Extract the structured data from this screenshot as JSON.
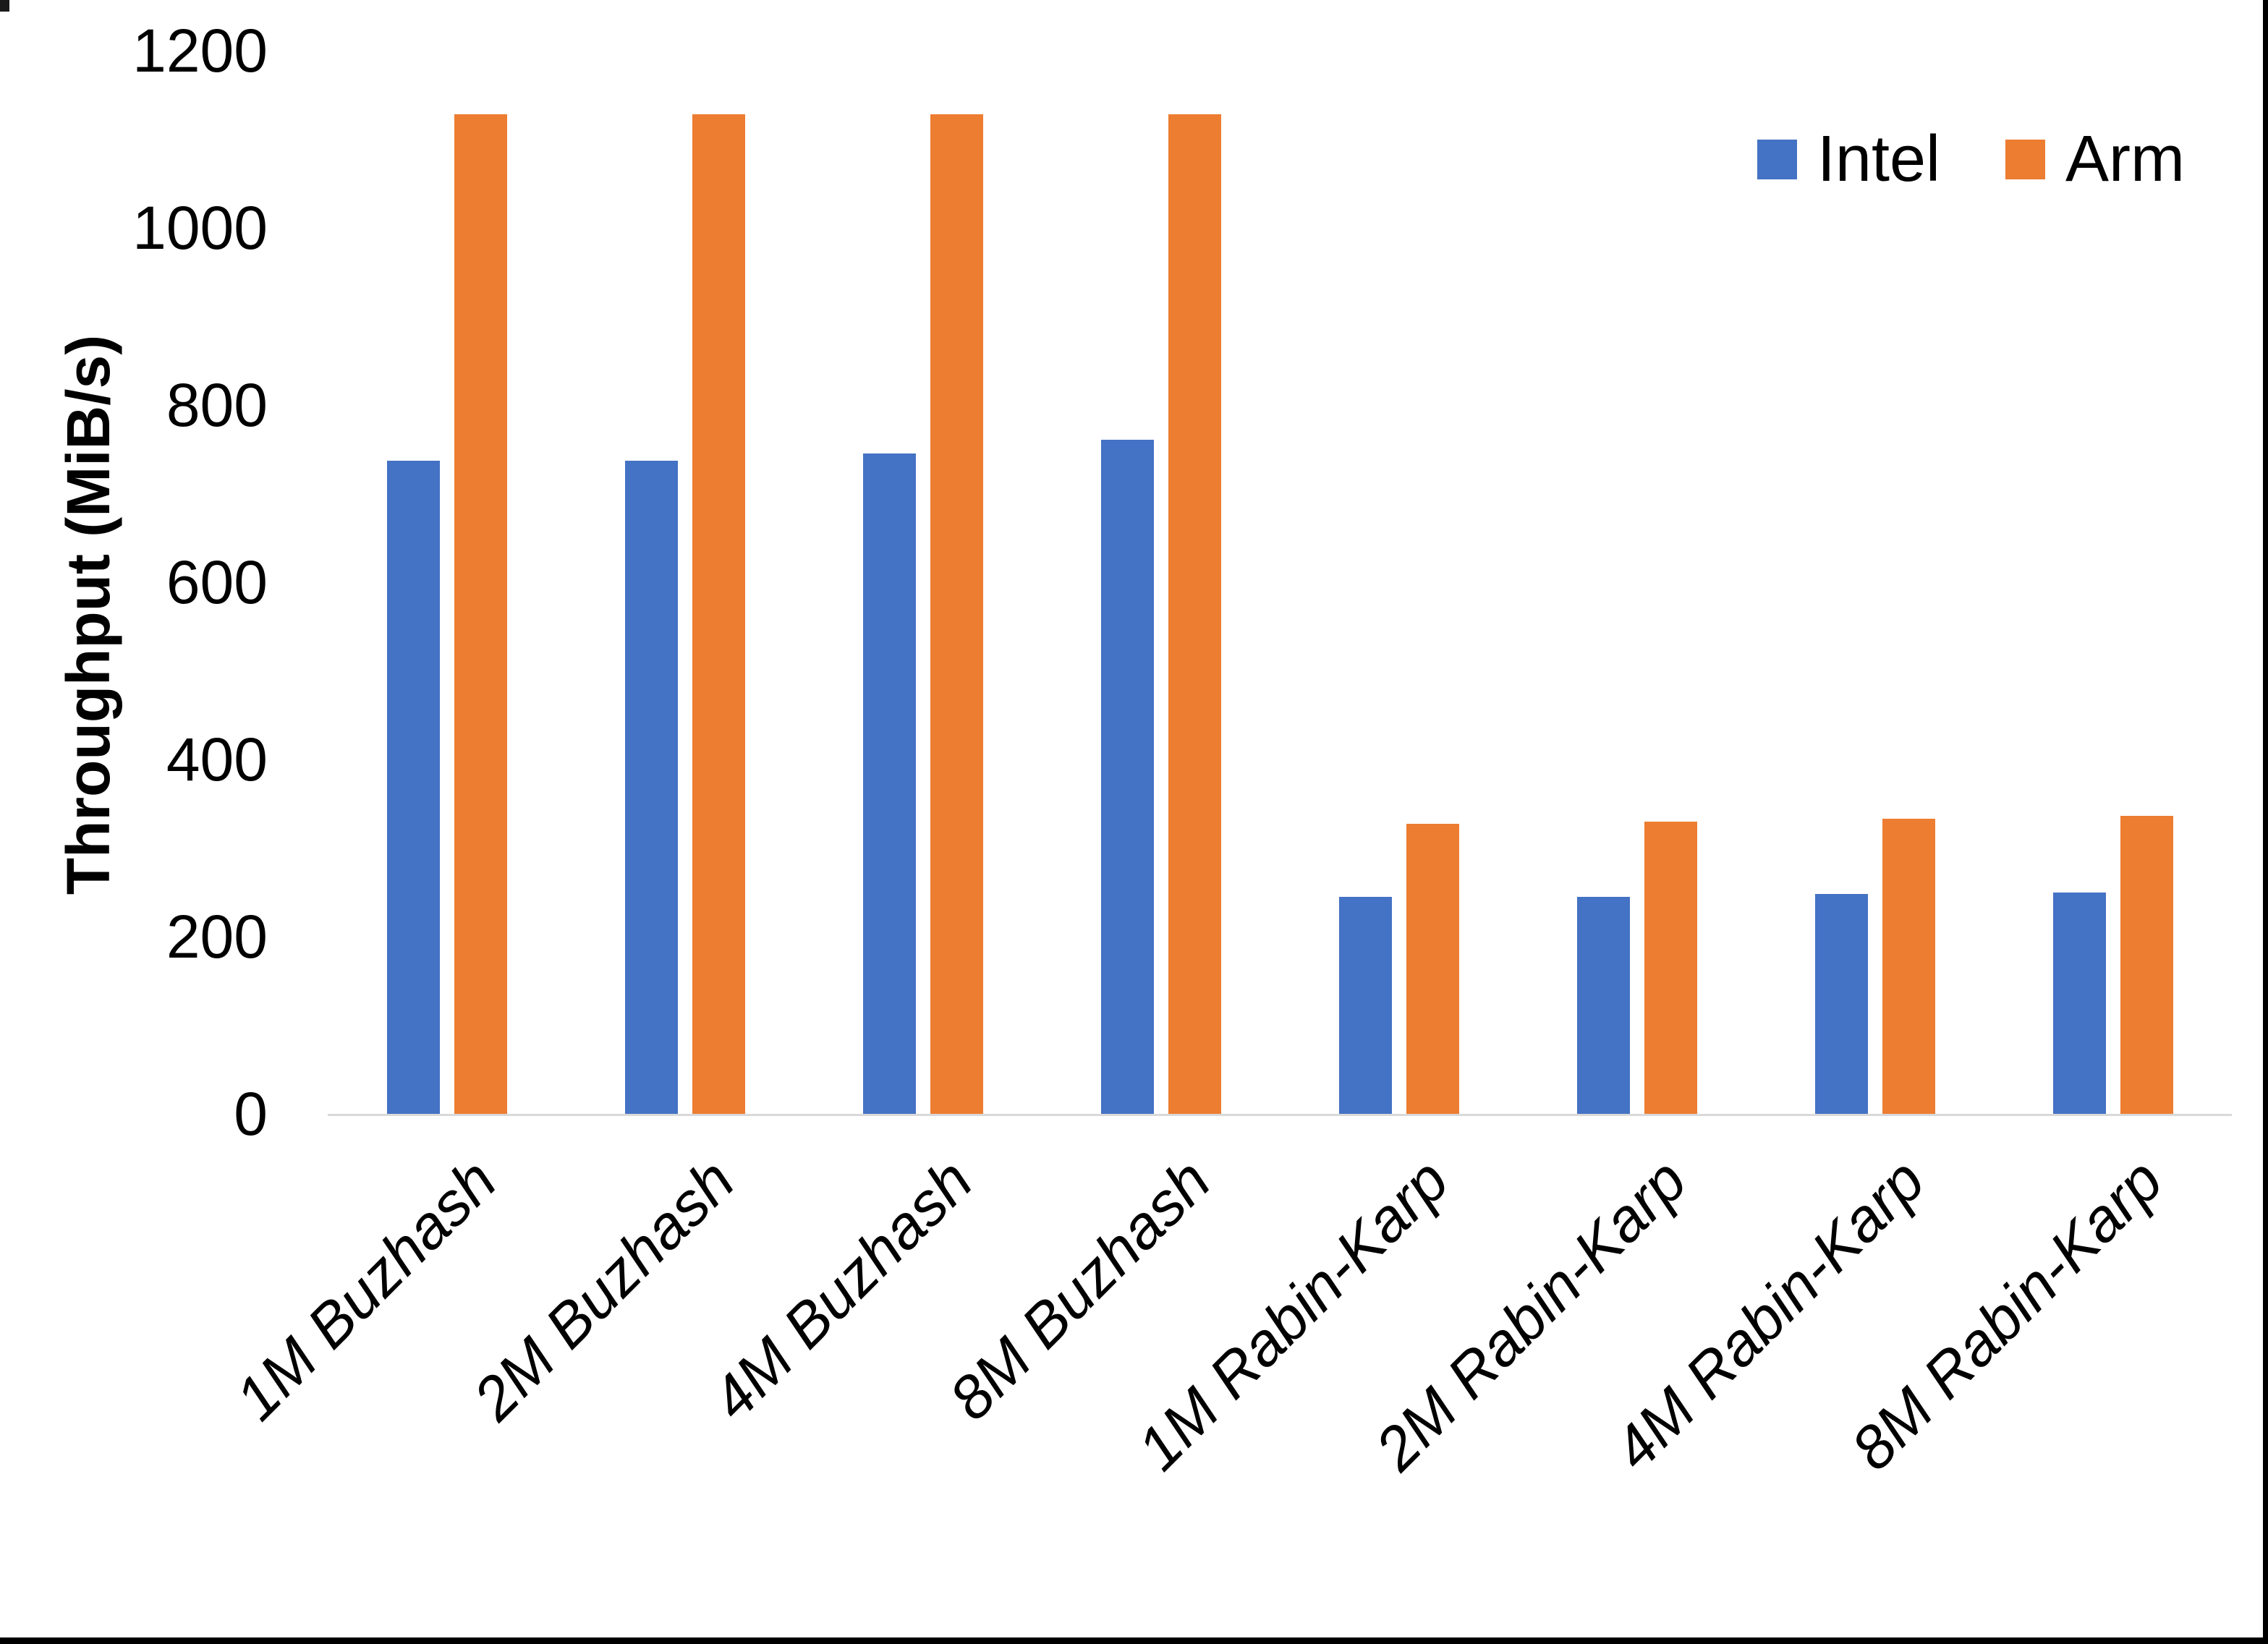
{
  "chart_data": {
    "type": "bar",
    "title": "",
    "xlabel": "",
    "ylabel": "Throughput (MiB/s)",
    "categories": [
      "1M Buzhash",
      "2M Buzhash",
      "4M Buzhash",
      "8M Buzhash",
      "1M Rabin-Karp",
      "2M Rabin-Karp",
      "4M Rabin-Karp",
      "8M Rabin-Karp"
    ],
    "series": [
      {
        "name": "Intel",
        "color": "#4472C4",
        "values": [
          737,
          737,
          745,
          761,
          245,
          245,
          248,
          250
        ]
      },
      {
        "name": "Arm",
        "color": "#ED7D31",
        "values": [
          1128,
          1128,
          1128,
          1128,
          327,
          330,
          333,
          336
        ]
      }
    ],
    "ylim": [
      0,
      1200
    ],
    "yticks": [
      0,
      200,
      400,
      600,
      800,
      1000,
      1200
    ],
    "grid": false,
    "legend_position": "top-right",
    "axis_line_color": "#D9D9D9"
  }
}
